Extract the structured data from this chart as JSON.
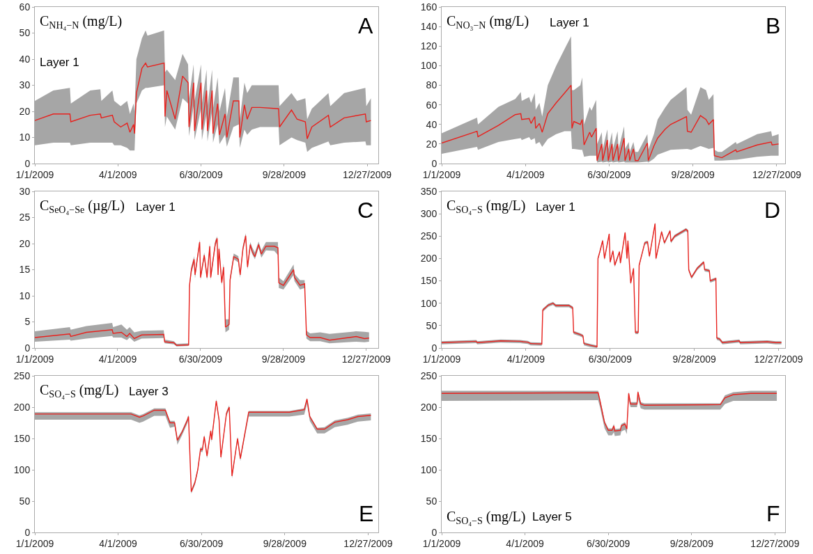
{
  "chart_data": [
    {
      "type": "line",
      "title": "C$_{NH₄−N}$ (mg/L)",
      "subtitle": "Layer 1",
      "annotations": [
        "A"
      ],
      "xlim": [
        "2009-01-01",
        "2010-01-08"
      ],
      "xticks": [
        {
          "value": "2009-01-01",
          "label": "1/1/2009"
        },
        {
          "value": "2009-04-01",
          "label": "4/1/2009"
        },
        {
          "value": "2009-06-30",
          "label": "6/30/2009"
        },
        {
          "value": "2009-09-28",
          "label": "9/28/2009"
        },
        {
          "value": "2009-12-27",
          "label": "12/27/2009"
        }
      ],
      "ylim": [
        0,
        60
      ],
      "yticks": [
        0,
        10,
        20,
        30,
        40,
        50,
        60
      ],
      "x": [
        "2009-01-01",
        "2009-01-21",
        "2009-02-08",
        "2009-02-09",
        "2009-03-02",
        "2009-03-13",
        "2009-03-14",
        "2009-03-26",
        "2009-03-28",
        "2009-04-04",
        "2009-04-11",
        "2009-04-14",
        "2009-04-18",
        "2009-04-19",
        "2009-04-21",
        "2009-04-27",
        "2009-05-01",
        "2009-05-03",
        "2009-05-21",
        "2009-05-22",
        "2009-05-24",
        "2009-06-02",
        "2009-06-10",
        "2009-06-16",
        "2009-06-17",
        "2009-06-22",
        "2009-06-23",
        "2009-06-30",
        "2009-07-01",
        "2009-07-06",
        "2009-07-07",
        "2009-07-12",
        "2009-07-13",
        "2009-07-18",
        "2009-07-20",
        "2009-07-26",
        "2009-07-28",
        "2009-08-04",
        "2009-08-10",
        "2009-08-11",
        "2009-08-16",
        "2009-08-19",
        "2009-08-24",
        "2009-09-02",
        "2009-09-22",
        "2009-09-23",
        "2009-10-06",
        "2009-10-12",
        "2009-10-21",
        "2009-10-23",
        "2009-10-28",
        "2009-11-15",
        "2009-11-17",
        "2009-12-02",
        "2009-12-25",
        "2009-12-26",
        "2009-12-31"
      ],
      "series": [
        {
          "color": "#e8211d",
          "values": [
            16.5,
            19,
            19,
            16,
            18.5,
            19,
            17.5,
            18.5,
            16,
            14,
            15.5,
            12,
            15,
            11.5,
            27,
            36.5,
            38.5,
            37,
            38.5,
            18,
            28,
            17,
            33.5,
            31,
            14,
            31,
            12.5,
            31,
            13,
            28,
            12.5,
            28,
            11.5,
            23,
            11,
            19,
            10,
            24,
            24,
            10,
            22.5,
            17,
            21.5,
            21.5,
            21,
            14,
            20.5,
            17,
            16,
            9.5,
            14,
            18.5,
            14,
            17.5,
            19,
            16,
            16.5
          ],
          "lower": [
            7,
            8,
            8,
            7,
            8,
            8,
            8,
            8,
            7,
            7,
            6,
            5,
            5,
            5,
            23,
            28,
            29,
            29,
            30,
            14,
            18,
            13,
            25,
            23,
            10.5,
            22,
            9,
            21,
            9,
            19,
            8.5,
            20,
            8,
            15,
            7.5,
            11,
            6.5,
            14,
            15,
            6,
            13,
            11,
            13,
            14,
            14,
            7,
            10,
            9,
            8,
            4.5,
            6,
            8.5,
            7,
            8,
            8.5,
            7,
            7
          ],
          "upper": [
            24,
            28,
            29,
            23,
            28,
            28.5,
            24,
            28,
            24,
            22,
            24,
            19,
            23,
            20,
            40,
            48,
            51,
            49,
            51,
            35,
            36,
            32,
            42,
            38,
            25,
            38,
            24,
            38,
            23,
            36,
            22,
            36,
            21,
            33,
            20,
            29,
            18,
            33,
            33,
            17,
            31,
            27,
            30,
            30,
            30,
            22,
            27,
            24,
            25,
            17,
            21,
            27,
            22,
            27,
            29,
            22,
            25
          ]
        }
      ]
    },
    {
      "type": "line",
      "title": "C$_{NO₃−N}$ (mg/L)",
      "subtitle": "Layer 1",
      "annotations": [
        "B"
      ],
      "xlim": [
        "2009-01-01",
        "2010-01-05"
      ],
      "xticks": [
        {
          "value": "2009-01-01",
          "label": "1/1/2009"
        },
        {
          "value": "2009-04-01",
          "label": "4/1/2009"
        },
        {
          "value": "2009-06-30",
          "label": "6/30/2009"
        },
        {
          "value": "2009-09-28",
          "label": "9/28/2009"
        },
        {
          "value": "2009-12-27",
          "label": "12/27/2009"
        }
      ],
      "ylim": [
        0,
        160
      ],
      "yticks": [
        0,
        20,
        40,
        60,
        80,
        100,
        120,
        140,
        160
      ],
      "x": [
        "2009-01-01",
        "2009-02-08",
        "2009-02-09",
        "2009-03-03",
        "2009-03-21",
        "2009-03-27",
        "2009-03-28",
        "2009-04-05",
        "2009-04-07",
        "2009-04-11",
        "2009-04-12",
        "2009-04-16",
        "2009-04-19",
        "2009-04-25",
        "2009-05-04",
        "2009-05-13",
        "2009-05-20",
        "2009-05-21",
        "2009-05-23",
        "2009-05-30",
        "2009-06-01",
        "2009-06-03",
        "2009-06-09",
        "2009-06-11",
        "2009-06-16",
        "2009-06-17",
        "2009-06-22",
        "2009-06-23",
        "2009-06-28",
        "2009-06-29",
        "2009-07-03",
        "2009-07-04",
        "2009-07-09",
        "2009-07-10",
        "2009-07-16",
        "2009-07-17",
        "2009-07-21",
        "2009-07-22",
        "2009-07-26",
        "2009-07-28",
        "2009-07-31",
        "2009-08-10",
        "2009-08-11",
        "2009-08-17",
        "2009-08-21",
        "2009-08-29",
        "2009-09-04",
        "2009-09-21",
        "2009-09-22",
        "2009-09-26",
        "2009-10-06",
        "2009-10-12",
        "2009-10-15",
        "2009-10-20",
        "2009-10-21",
        "2009-10-25",
        "2009-10-29",
        "2009-11-13",
        "2009-11-14",
        "2009-12-06",
        "2009-12-21",
        "2009-12-22",
        "2009-12-29"
      ],
      "series": [
        {
          "color": "#e8211d",
          "values": [
            21,
            33,
            27.5,
            39,
            50,
            51,
            45,
            46,
            41,
            48,
            36,
            41,
            32,
            51,
            62,
            72,
            80,
            36,
            43,
            40,
            45,
            19,
            32,
            27,
            36,
            3,
            20,
            3,
            24,
            3,
            20,
            3,
            20,
            3,
            26,
            3,
            15,
            3,
            15,
            3,
            3,
            21,
            3,
            18,
            26,
            35,
            40,
            48,
            33,
            32,
            49,
            45,
            40,
            45,
            8,
            7,
            6,
            14,
            12,
            19,
            22,
            19,
            20
          ],
          "lower": [
            10,
            17,
            14,
            22,
            25,
            26,
            24,
            27,
            24,
            26,
            20,
            22,
            17,
            25,
            30,
            33,
            33,
            15,
            15,
            14,
            14,
            7,
            8,
            8,
            8,
            1,
            2,
            1,
            2,
            1,
            2,
            1,
            2,
            1,
            2,
            1,
            1,
            1,
            1,
            1,
            1,
            2,
            1,
            5,
            9,
            12,
            14,
            15,
            15,
            14,
            18,
            16,
            15,
            16,
            3,
            3,
            3,
            4,
            4,
            7,
            8,
            8,
            8
          ],
          "upper": [
            31,
            47,
            40,
            58,
            66,
            73,
            64,
            68,
            62,
            72,
            55,
            62,
            48,
            80,
            100,
            117,
            130,
            75,
            75,
            80,
            88,
            40,
            58,
            54,
            65,
            20,
            32,
            15,
            35,
            15,
            32,
            15,
            33,
            15,
            38,
            15,
            22,
            12,
            22,
            12,
            12,
            30,
            14,
            30,
            45,
            57,
            65,
            78,
            55,
            50,
            78,
            75,
            65,
            71,
            14,
            12,
            12,
            22,
            20,
            30,
            33,
            28,
            30
          ]
        }
      ]
    },
    {
      "type": "line",
      "title": "C$_{SeO₄−Se}$ (µg/L)",
      "subtitle": "Layer 1",
      "annotations": [
        "C"
      ],
      "xlim": [
        "2009-01-01",
        "2010-01-09"
      ],
      "xticks": [
        {
          "value": "2009-01-01",
          "label": "1/1/2009"
        },
        {
          "value": "2009-04-01",
          "label": "4/1/2009"
        },
        {
          "value": "2009-06-30",
          "label": "6/30/2009"
        },
        {
          "value": "2009-09-28",
          "label": "9/28/2009"
        },
        {
          "value": "2009-12-27",
          "label": "12/27/2009"
        }
      ],
      "ylim": [
        0,
        30
      ],
      "yticks": [
        0,
        5,
        10,
        15,
        20,
        25,
        30
      ],
      "x": [
        "2009-01-01",
        "2009-02-08",
        "2009-02-09",
        "2009-02-26",
        "2009-03-26",
        "2009-03-27",
        "2009-04-05",
        "2009-04-11",
        "2009-04-14",
        "2009-04-19",
        "2009-04-27",
        "2009-05-21",
        "2009-05-22",
        "2009-06-01",
        "2009-06-04",
        "2009-06-17",
        "2009-06-18",
        "2009-06-20",
        "2009-06-23",
        "2009-06-24",
        "2009-06-29",
        "2009-06-30",
        "2009-07-04",
        "2009-07-07",
        "2009-07-10",
        "2009-07-11",
        "2009-07-16",
        "2009-07-18",
        "2009-07-19",
        "2009-07-20",
        "2009-07-23",
        "2009-07-25",
        "2009-07-27",
        "2009-07-31",
        "2009-08-01",
        "2009-08-05",
        "2009-08-10",
        "2009-08-12",
        "2009-08-15",
        "2009-08-18",
        "2009-08-20",
        "2009-08-23",
        "2009-08-25",
        "2009-08-28",
        "2009-09-01",
        "2009-09-04",
        "2009-09-09",
        "2009-09-18",
        "2009-09-22",
        "2009-09-23",
        "2009-09-28",
        "2009-10-09",
        "2009-10-10",
        "2009-10-16",
        "2009-10-21",
        "2009-10-23",
        "2009-10-27",
        "2009-11-07",
        "2009-11-17",
        "2009-12-16",
        "2009-12-25",
        "2009-12-30"
      ],
      "series": [
        {
          "color": "#e8211d",
          "values": [
            2,
            2.7,
            2.2,
            3,
            3.5,
            2.8,
            3,
            2.2,
            2.8,
            1.8,
            2.5,
            2.6,
            1.2,
            1,
            0.5,
            0.6,
            12,
            15,
            17,
            14,
            20.3,
            13.5,
            17.8,
            13.5,
            19.5,
            13.5,
            20,
            21,
            14,
            19,
            12.5,
            15.5,
            4,
            4.5,
            13,
            17.5,
            17,
            14,
            19,
            21.5,
            15.5,
            19.8,
            18.5,
            17.5,
            19.8,
            18,
            19.5,
            19.5,
            19.2,
            12.5,
            12,
            15,
            13.5,
            12,
            12.3,
            2.5,
            2,
            2,
            1.5,
            2.2,
            1.8,
            1.9
          ],
          "lower": [
            1.2,
            1.6,
            1.4,
            1.8,
            2.3,
            2,
            2,
            1.5,
            2,
            1.2,
            1.8,
            1.9,
            0.9,
            0.7,
            0.3,
            0.4,
            11.5,
            14.3,
            16.3,
            13.3,
            19.8,
            13,
            17.2,
            13,
            19,
            13,
            19.4,
            20.4,
            13.4,
            18.4,
            12,
            15,
            3,
            3.5,
            12.4,
            17,
            16.4,
            13.4,
            18.5,
            21,
            15,
            19.2,
            18,
            17,
            19.2,
            17.3,
            18.7,
            18.6,
            17.8,
            11.5,
            11.2,
            14,
            12.8,
            11.2,
            11.5,
            1.8,
            1.3,
            1.3,
            0.9,
            1.2,
            1.1,
            1.2
          ],
          "upper": [
            3.2,
            4,
            3.5,
            4.2,
            4.8,
            4,
            4.5,
            3.5,
            4,
            3,
            3.3,
            3.4,
            1.6,
            1.3,
            0.8,
            0.9,
            12.5,
            15.6,
            17.6,
            14.6,
            20.8,
            14.2,
            18.3,
            14.2,
            20.1,
            14.2,
            20.6,
            21.4,
            14.6,
            19.6,
            13.2,
            16.2,
            5.5,
            5.5,
            13.6,
            18.1,
            17.6,
            14.6,
            19.6,
            22,
            16.1,
            20.3,
            19.3,
            18.3,
            20.4,
            18.7,
            20.3,
            20.3,
            20.3,
            13.5,
            12.8,
            16,
            14.2,
            13,
            13,
            3.3,
            2.8,
            3,
            2.7,
            3.2,
            3.1,
            3
          ]
        }
      ]
    },
    {
      "type": "line",
      "title": "C$_{SO₄−S}$ (mg/L)",
      "subtitle": "Layer 1",
      "annotations": [
        "D"
      ],
      "xlim": [
        "2009-01-01",
        "2010-01-03"
      ],
      "xticks": [
        {
          "value": "2009-01-01",
          "label": "1/1/2009"
        },
        {
          "value": "2009-04-01",
          "label": "4/1/2009"
        },
        {
          "value": "2009-06-30",
          "label": "6/30/2009"
        },
        {
          "value": "2009-09-28",
          "label": "9/28/2009"
        },
        {
          "value": "2009-12-27",
          "label": "12/27/2009"
        }
      ],
      "ylim": [
        0,
        350
      ],
      "yticks": [
        0,
        50,
        100,
        150,
        200,
        250,
        300,
        350
      ],
      "x": [
        "2009-01-01",
        "2009-02-07",
        "2009-02-08",
        "2009-03-05",
        "2009-03-26",
        "2009-03-29",
        "2009-04-03",
        "2009-04-06",
        "2009-04-18",
        "2009-04-19",
        "2009-04-25",
        "2009-04-30",
        "2009-05-03",
        "2009-05-17",
        "2009-05-21",
        "2009-05-22",
        "2009-05-29",
        "2009-06-01",
        "2009-06-02",
        "2009-06-09",
        "2009-06-16",
        "2009-06-17",
        "2009-06-19",
        "2009-06-22",
        "2009-06-24",
        "2009-06-29",
        "2009-06-30",
        "2009-07-03",
        "2009-07-05",
        "2009-07-10",
        "2009-07-11",
        "2009-07-16",
        "2009-07-18",
        "2009-07-19",
        "2009-07-22",
        "2009-07-25",
        "2009-07-27",
        "2009-07-30",
        "2009-07-31",
        "2009-08-06",
        "2009-08-09",
        "2009-08-11",
        "2009-08-17",
        "2009-08-18",
        "2009-08-24",
        "2009-08-27",
        "2009-09-02",
        "2009-09-03",
        "2009-09-07",
        "2009-09-19",
        "2009-09-21",
        "2009-09-22",
        "2009-09-25",
        "2009-10-01",
        "2009-10-08",
        "2009-10-09",
        "2009-10-14",
        "2009-10-15",
        "2009-10-21",
        "2009-10-22",
        "2009-10-25",
        "2009-10-28",
        "2009-11-15",
        "2009-11-16",
        "2009-12-15",
        "2009-12-24",
        "2009-12-30"
      ],
      "series": [
        {
          "color": "#e8211d",
          "values": [
            12,
            15,
            12,
            16,
            15,
            14,
            13,
            10,
            9,
            85,
            96,
            100,
            95,
            95,
            90,
            35,
            30,
            27,
            10,
            6,
            3,
            200,
            215,
            240,
            200,
            255,
            192,
            217,
            185,
            215,
            190,
            258,
            200,
            240,
            145,
            178,
            35,
            35,
            185,
            235,
            237,
            205,
            278,
            200,
            260,
            235,
            262,
            238,
            250,
            265,
            262,
            175,
            158,
            178,
            192,
            175,
            173,
            150,
            155,
            22,
            20,
            12,
            16,
            12,
            14,
            12,
            12
          ],
          "lower": [
            8,
            11,
            8,
            12,
            11,
            10,
            9,
            6,
            5,
            81,
            92,
            96,
            91,
            91,
            86,
            31,
            26,
            23,
            6,
            2,
            0,
            196,
            211,
            236,
            196,
            251,
            188,
            213,
            181,
            211,
            186,
            254,
            196,
            236,
            141,
            174,
            31,
            31,
            181,
            231,
            233,
            201,
            274,
            196,
            256,
            231,
            258,
            234,
            246,
            261,
            258,
            171,
            154,
            174,
            188,
            171,
            169,
            146,
            151,
            18,
            16,
            8,
            12,
            8,
            10,
            8,
            8
          ],
          "upper": [
            15,
            18,
            15,
            19,
            18,
            17,
            16,
            13,
            12,
            88,
            99,
            103,
            98,
            98,
            93,
            38,
            33,
            30,
            13,
            9,
            6,
            203,
            218,
            243,
            203,
            258,
            195,
            220,
            188,
            218,
            193,
            261,
            203,
            243,
            148,
            181,
            38,
            38,
            188,
            238,
            240,
            208,
            281,
            203,
            263,
            238,
            265,
            241,
            253,
            268,
            265,
            178,
            161,
            181,
            195,
            178,
            176,
            153,
            158,
            25,
            23,
            15,
            19,
            15,
            17,
            15,
            15
          ]
        }
      ]
    },
    {
      "type": "line",
      "title": "C$_{SO₄−S}$ (mg/L)",
      "subtitle": "Layer 3",
      "annotations": [
        "E"
      ],
      "xlim": [
        "2009-01-01",
        "2010-01-07"
      ],
      "xticks": [
        {
          "value": "2009-01-01",
          "label": "1/1/2009"
        },
        {
          "value": "2009-04-01",
          "label": "4/1/2009"
        },
        {
          "value": "2009-06-30",
          "label": "6/30/2009"
        },
        {
          "value": "2009-09-28",
          "label": "9/28/2009"
        },
        {
          "value": "2009-12-27",
          "label": "12/27/2009"
        }
      ],
      "ylim": [
        0,
        250
      ],
      "yticks": [
        0,
        50,
        100,
        150,
        200,
        250
      ],
      "x": [
        "2009-01-01",
        "2009-04-15",
        "2009-04-24",
        "2009-04-28",
        "2009-05-10",
        "2009-05-22",
        "2009-05-27",
        "2009-06-01",
        "2009-06-04",
        "2009-06-09",
        "2009-06-15",
        "2009-06-16",
        "2009-06-19",
        "2009-06-23",
        "2009-06-26",
        "2009-06-29",
        "2009-07-01",
        "2009-07-03",
        "2009-07-06",
        "2009-07-10",
        "2009-07-11",
        "2009-07-16",
        "2009-07-19",
        "2009-07-21",
        "2009-07-27",
        "2009-07-30",
        "2009-08-02",
        "2009-08-08",
        "2009-08-11",
        "2009-08-20",
        "2009-10-03",
        "2009-10-19",
        "2009-10-22",
        "2009-10-25",
        "2009-11-02",
        "2009-11-10",
        "2009-11-21",
        "2009-12-05",
        "2009-12-16",
        "2009-12-30"
      ],
      "series": [
        {
          "color": "#e8211d",
          "values": [
            189,
            189,
            184,
            186,
            195,
            195,
            175,
            175,
            147,
            160,
            180,
            185,
            65,
            80,
            100,
            133,
            132,
            153,
            122,
            162,
            148,
            210,
            180,
            120,
            190,
            200,
            90,
            150,
            118,
            192,
            192,
            196,
            213,
            185,
            165,
            165,
            176,
            180,
            185,
            187
          ],
          "lower": [
            180,
            180,
            175,
            177,
            186,
            186,
            167,
            169,
            140,
            155,
            175,
            180,
            62,
            76,
            96,
            129,
            128,
            149,
            118,
            158,
            144,
            205,
            175,
            116,
            186,
            196,
            86,
            146,
            114,
            185,
            185,
            188,
            205,
            178,
            158,
            158,
            168,
            172,
            177,
            179
          ],
          "upper": [
            192,
            192,
            187,
            189,
            198,
            198,
            178,
            178,
            150,
            163,
            183,
            188,
            68,
            83,
            103,
            136,
            135,
            156,
            125,
            165,
            151,
            213,
            183,
            123,
            193,
            203,
            93,
            153,
            121,
            194,
            194,
            198,
            215,
            187,
            167,
            168,
            179,
            183,
            188,
            190
          ]
        }
      ]
    },
    {
      "type": "line",
      "title": "C$_{SO₄−S}$ (mg/L)",
      "subtitle": "Layer 5",
      "annotations": [
        "F"
      ],
      "xlim": [
        "2009-01-01",
        "2010-01-07"
      ],
      "xticks": [
        {
          "value": "2009-01-01",
          "label": "1/1/2009"
        },
        {
          "value": "2009-04-01",
          "label": "4/1/2009"
        },
        {
          "value": "2009-06-30",
          "label": "6/30/2009"
        },
        {
          "value": "2009-09-28",
          "label": "9/28/2009"
        },
        {
          "value": "2009-12-27",
          "label": "12/27/2009"
        }
      ],
      "ylim": [
        0,
        250
      ],
      "yticks": [
        0,
        50,
        100,
        150,
        200,
        250
      ],
      "x": [
        "2009-01-01",
        "2009-06-19",
        "2009-06-21",
        "2009-06-26",
        "2009-06-30",
        "2009-07-04",
        "2009-07-06",
        "2009-07-07",
        "2009-07-13",
        "2009-07-14",
        "2009-07-18",
        "2009-07-20",
        "2009-07-22",
        "2009-07-24",
        "2009-07-31",
        "2009-08-01",
        "2009-08-04",
        "2009-08-08",
        "2009-10-29",
        "2009-11-03",
        "2009-11-12",
        "2009-12-01",
        "2009-12-29"
      ],
      "series": [
        {
          "color": "#e8211d",
          "values": [
            222,
            223,
            210,
            175,
            163,
            163,
            170,
            162,
            163,
            170,
            173,
            165,
            222,
            205,
            205,
            224,
            205,
            203,
            204,
            215,
            220,
            222,
            222
          ],
          "lower": [
            210,
            211,
            200,
            166,
            155,
            155,
            160,
            154,
            155,
            161,
            164,
            157,
            212,
            200,
            200,
            214,
            198,
            196,
            196,
            205,
            210,
            210,
            210
          ],
          "upper": [
            226,
            226,
            214,
            178,
            166,
            166,
            173,
            165,
            166,
            173,
            176,
            168,
            225,
            208,
            208,
            227,
            208,
            206,
            206,
            219,
            224,
            226,
            226
          ]
        }
      ]
    }
  ]
}
